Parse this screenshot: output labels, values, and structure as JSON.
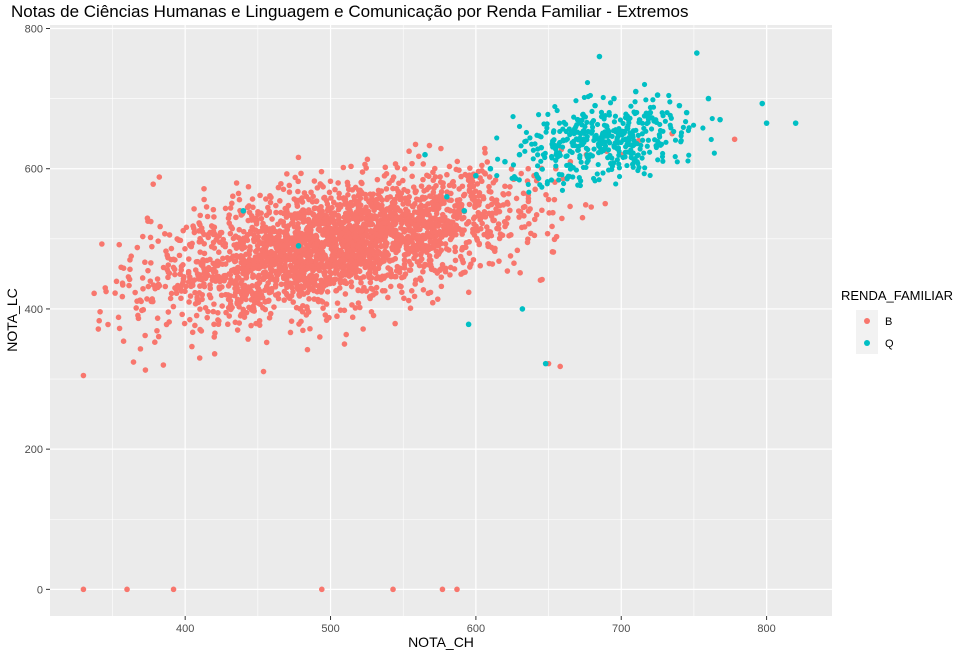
{
  "chart_data": {
    "type": "scatter",
    "title": "Notas de Ciências Humanas e Linguagem e Comunicação por Renda Familiar - Extremos",
    "xlabel": "NOTA_CH",
    "ylabel": "NOTA_LC",
    "xlim": [
      307,
      845
    ],
    "ylim": [
      -38,
      805
    ],
    "x_ticks": [
      400,
      500,
      600,
      700,
      800
    ],
    "y_ticks": [
      0,
      200,
      400,
      600,
      800
    ],
    "x_tick_labels": [
      "400",
      "500",
      "600",
      "700",
      "800"
    ],
    "y_tick_labels": [
      "0",
      "200",
      "400",
      "600",
      "800"
    ],
    "grid": true,
    "legend": {
      "title": "RENDA_FAMILIAR",
      "position": "right",
      "entries": [
        {
          "label": "B",
          "color": "#F8766D"
        },
        {
          "label": "Q",
          "color": "#00BFC4"
        }
      ]
    },
    "series": [
      {
        "name": "B",
        "color": "#F8766D",
        "x": [
          330,
          360,
          392,
          494,
          543,
          577,
          587,
          330,
          345,
          362,
          378,
          385,
          410,
          420,
          440,
          455,
          470,
          488,
          500,
          520,
          535,
          548,
          560,
          572,
          590,
          605,
          620,
          640,
          655,
          700,
          712,
          735,
          778,
          650,
          658,
          415,
          430,
          452,
          468,
          480,
          512,
          528,
          544,
          566,
          583,
          598,
          612,
          626,
          636,
          665,
          676,
          690,
          705
        ],
        "y": [
          0,
          0,
          0,
          0,
          0,
          0,
          0,
          305,
          430,
          470,
          578,
          320,
          330,
          360,
          395,
          410,
          420,
          440,
          460,
          470,
          490,
          505,
          520,
          530,
          545,
          560,
          575,
          590,
          600,
          620,
          640,
          650,
          642,
          322,
          318,
          450,
          470,
          460,
          490,
          500,
          475,
          510,
          520,
          540,
          555,
          560,
          580,
          585,
          600,
          610,
          620,
          625,
          635
        ]
      },
      {
        "name": "Q",
        "color": "#00BFC4",
        "x": [
          685,
          752,
          797,
          800,
          820,
          760,
          740,
          720,
          705,
          690,
          672,
          660,
          645,
          630,
          620,
          610,
          600,
          592,
          580,
          565,
          648,
          632,
          440,
          478,
          595,
          670,
          682,
          695,
          710,
          725,
          745,
          768
        ],
        "y": [
          760,
          765,
          693,
          665,
          665,
          700,
          690,
          680,
          670,
          660,
          650,
          640,
          630,
          620,
          610,
          600,
          590,
          540,
          560,
          620,
          322,
          400,
          540,
          490,
          378,
          670,
          690,
          700,
          710,
          705,
          680,
          670
        ]
      }
    ]
  }
}
